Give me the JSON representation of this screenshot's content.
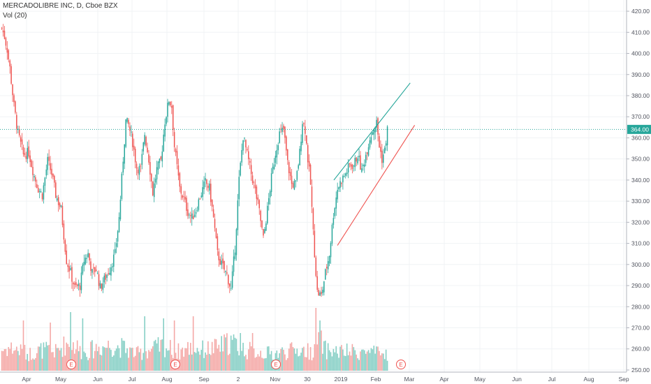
{
  "header": {
    "symbol_line": "MERCADOLIBRE INC, D, Cboe BZX",
    "volume_line": "Vol (20)"
  },
  "price_badge": "364.00",
  "colors": {
    "up": "#26a69a",
    "down": "#ef5350",
    "vol_up": "#86cfc5",
    "vol_down": "#f4a8a6",
    "last_price_line": "#26a69a",
    "earnings_marker": "#ef5350",
    "upper_trendline": "#26a69a",
    "lower_trendline": "#ef5350",
    "grid": "#f0f3f5"
  },
  "icons": {
    "earnings": "circle-letter-icon"
  },
  "chart_data": {
    "type": "candlestick",
    "title": "MERCADOLIBRE INC, D, Cboe BZX",
    "interval": "D",
    "last_price": 364.0,
    "y_axis": {
      "side": "right",
      "range": [
        248,
        423
      ],
      "ticks": [
        250,
        260,
        270,
        280,
        290,
        300,
        310,
        320,
        330,
        340,
        350,
        360,
        370,
        380,
        390,
        400,
        410,
        420
      ],
      "tick_labels": [
        "250.00",
        "260.00",
        "270.00",
        "280.00",
        "290.00",
        "300.00",
        "310.00",
        "320.00",
        "330.00",
        "340.00",
        "350.00",
        "360.00",
        "370.00",
        "380.00",
        "390.00",
        "400.00",
        "410.00",
        "420.00"
      ]
    },
    "x_axis": {
      "tick_labels": [
        "Apr",
        "May",
        "Jun",
        "Jul",
        "Aug",
        "Sep",
        "2",
        "Nov",
        "30",
        "2019",
        "Feb",
        "Mar",
        "Apr",
        "May",
        "Jun",
        "Jul",
        "Aug",
        "Sep"
      ]
    },
    "earnings_markers": [
      {
        "label": "E",
        "date": "2018-05"
      },
      {
        "label": "E",
        "date": "2018-08"
      },
      {
        "label": "E",
        "date": "2018-11"
      },
      {
        "label": "E",
        "date": "2019-02"
      }
    ],
    "trendlines": [
      {
        "name": "upper",
        "points": [
          [
            25,
            340
          ],
          [
            196,
            386
          ]
        ]
      },
      {
        "name": "lower",
        "points": [
          [
            33,
            309
          ],
          [
            206,
            366
          ]
        ]
      }
    ],
    "price_anchors": [
      [
        0,
        412
      ],
      [
        2,
        408
      ],
      [
        4,
        402
      ],
      [
        6,
        393
      ],
      [
        9,
        375
      ],
      [
        12,
        362
      ],
      [
        16,
        352
      ],
      [
        20,
        353
      ],
      [
        24,
        342
      ],
      [
        27,
        336
      ],
      [
        30,
        333
      ],
      [
        34,
        349
      ],
      [
        37,
        343
      ],
      [
        40,
        333
      ],
      [
        44,
        326
      ],
      [
        48,
        302
      ],
      [
        51,
        296
      ],
      [
        54,
        289
      ],
      [
        58,
        290
      ],
      [
        61,
        302
      ],
      [
        64,
        305
      ],
      [
        67,
        296
      ],
      [
        70,
        298
      ],
      [
        73,
        289
      ],
      [
        77,
        294
      ],
      [
        80,
        298
      ],
      [
        84,
        305
      ],
      [
        87,
        322
      ],
      [
        90,
        350
      ],
      [
        92,
        368
      ],
      [
        94,
        366
      ],
      [
        97,
        358
      ],
      [
        100,
        346
      ],
      [
        103,
        345
      ],
      [
        106,
        362
      ],
      [
        109,
        350
      ],
      [
        112,
        334
      ],
      [
        115,
        345
      ],
      [
        118,
        349
      ],
      [
        121,
        368
      ],
      [
        124,
        378
      ],
      [
        126,
        375
      ],
      [
        128,
        356
      ],
      [
        132,
        336
      ],
      [
        135,
        331
      ],
      [
        138,
        325
      ],
      [
        141,
        322
      ],
      [
        144,
        326
      ],
      [
        147,
        332
      ],
      [
        151,
        339
      ],
      [
        154,
        336
      ],
      [
        157,
        322
      ],
      [
        160,
        305
      ],
      [
        163,
        300
      ],
      [
        167,
        295
      ],
      [
        170,
        288
      ],
      [
        173,
        308
      ],
      [
        176,
        340
      ],
      [
        179,
        361
      ],
      [
        182,
        352
      ],
      [
        185,
        343
      ],
      [
        188,
        335
      ],
      [
        191,
        325
      ],
      [
        194,
        312
      ],
      [
        197,
        326
      ],
      [
        200,
        341
      ],
      [
        203,
        353
      ],
      [
        206,
        362
      ],
      [
        209,
        364
      ],
      [
        212,
        348
      ],
      [
        215,
        338
      ],
      [
        218,
        338
      ],
      [
        221,
        353
      ],
      [
        223,
        368
      ],
      [
        225,
        364
      ],
      [
        227,
        350
      ],
      [
        229,
        338
      ],
      [
        231,
        315
      ],
      [
        234,
        287
      ],
      [
        237,
        285
      ],
      [
        240,
        296
      ],
      [
        243,
        305
      ],
      [
        246,
        324
      ],
      [
        249,
        336
      ],
      [
        252,
        340
      ],
      [
        255,
        343
      ],
      [
        258,
        347
      ],
      [
        261,
        347
      ],
      [
        264,
        352
      ],
      [
        267,
        344
      ],
      [
        270,
        352
      ],
      [
        273,
        360
      ],
      [
        276,
        365
      ],
      [
        278,
        367
      ],
      [
        280,
        356
      ],
      [
        282,
        350
      ],
      [
        284,
        354
      ],
      [
        286,
        364
      ]
    ],
    "volume_anchors": [
      [
        0,
        10
      ],
      [
        6,
        11
      ],
      [
        12,
        10
      ],
      [
        20,
        8
      ],
      [
        30,
        10
      ],
      [
        40,
        9
      ],
      [
        48,
        13
      ],
      [
        55,
        12
      ],
      [
        60,
        8
      ],
      [
        70,
        11
      ],
      [
        80,
        12
      ],
      [
        90,
        11
      ],
      [
        100,
        8
      ],
      [
        110,
        10
      ],
      [
        120,
        12
      ],
      [
        130,
        9
      ],
      [
        140,
        11
      ],
      [
        150,
        10
      ],
      [
        160,
        11
      ],
      [
        170,
        14
      ],
      [
        180,
        10
      ],
      [
        190,
        9
      ],
      [
        200,
        8
      ],
      [
        210,
        9
      ],
      [
        220,
        10
      ],
      [
        230,
        9
      ],
      [
        235,
        16
      ],
      [
        240,
        10
      ],
      [
        250,
        9
      ],
      [
        260,
        9
      ],
      [
        270,
        9
      ],
      [
        280,
        8
      ],
      [
        286,
        8
      ]
    ],
    "volume_spikes": [
      [
        16,
        24
      ],
      [
        36,
        23
      ],
      [
        51,
        28
      ],
      [
        60,
        25
      ],
      [
        106,
        26
      ],
      [
        120,
        25
      ],
      [
        128,
        24
      ],
      [
        142,
        26
      ],
      [
        177,
        18
      ],
      [
        186,
        18
      ],
      [
        233,
        30
      ],
      [
        236,
        24
      ]
    ]
  }
}
